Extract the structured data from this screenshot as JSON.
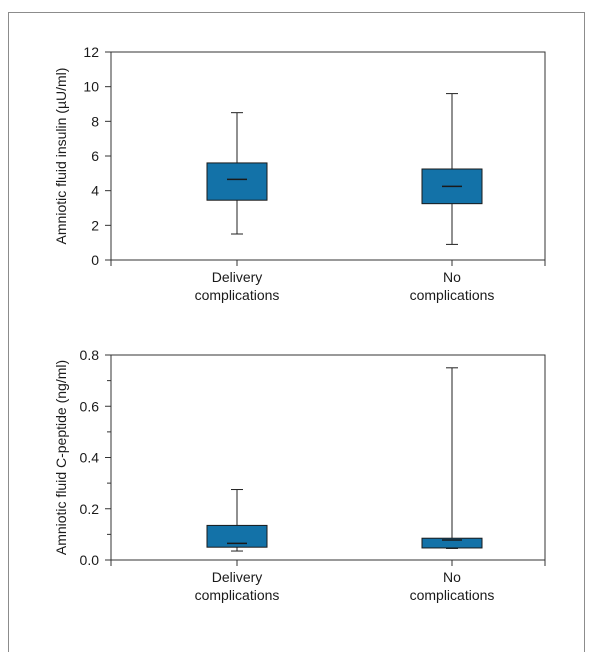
{
  "chart_data": [
    {
      "type": "box",
      "ylabel": "Amniotic fluid insulin (µU/ml)",
      "ylim": [
        0,
        12
      ],
      "yticks": [
        "0",
        "2",
        "4",
        "6",
        "8",
        "10",
        "12"
      ],
      "categories": [
        [
          "Delivery",
          "complications"
        ],
        [
          "No",
          "complications"
        ]
      ],
      "boxes": [
        {
          "min": 1.5,
          "q1": 3.45,
          "median": 4.65,
          "q3": 5.6,
          "max": 8.5
        },
        {
          "min": 0.9,
          "q1": 3.25,
          "median": 4.25,
          "q3": 5.25,
          "max": 9.6
        }
      ],
      "color": "#1372a8"
    },
    {
      "type": "box",
      "ylabel": "Amniotic fluid C-peptide (ng/ml)",
      "ylim": [
        0,
        0.8
      ],
      "yticks": [
        "0.0",
        "0.2",
        "0.4",
        "0.6",
        "0.8"
      ],
      "minor_yticks": [
        0.1,
        0.3,
        0.5,
        0.7
      ],
      "categories": [
        [
          "Delivery",
          "complications"
        ],
        [
          "No",
          "complications"
        ]
      ],
      "boxes": [
        {
          "min": 0.035,
          "q1": 0.05,
          "median": 0.065,
          "q3": 0.135,
          "max": 0.275
        },
        {
          "min": 0.045,
          "q1": 0.047,
          "median": 0.078,
          "q3": 0.085,
          "max": 0.75
        }
      ],
      "color": "#1372a8"
    }
  ]
}
